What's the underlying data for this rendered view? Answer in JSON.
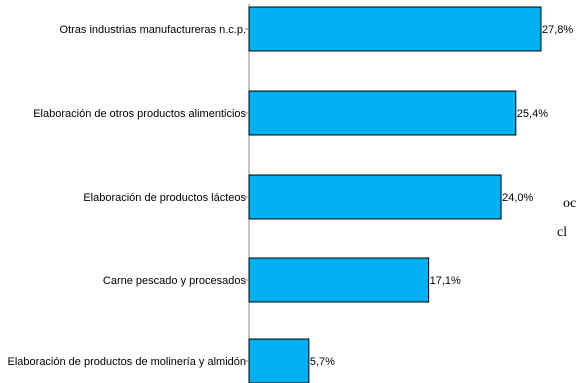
{
  "chart_data": {
    "type": "bar",
    "orientation": "horizontal",
    "categories": [
      "Otras industrias manufactureras n.c.p.",
      "Elaboración de otros productos alimenticios",
      "Elaboración de productos lácteos",
      "Carne pescado y procesados",
      "Elaboración de productos de molinería y almidón"
    ],
    "values": [
      27.8,
      25.4,
      24.0,
      17.1,
      5.7
    ],
    "value_labels": [
      "27,8%",
      "25,4%",
      "24,0%",
      "17,1%",
      "5,7%"
    ],
    "title": "",
    "xlabel": "",
    "ylabel": "",
    "xlim": [
      0,
      30
    ],
    "grid": false,
    "legend": "none",
    "bar_color": "#00b0f0",
    "bar_edge_color": "#000000"
  },
  "cutoff_text": [
    "oc",
    "cl"
  ]
}
